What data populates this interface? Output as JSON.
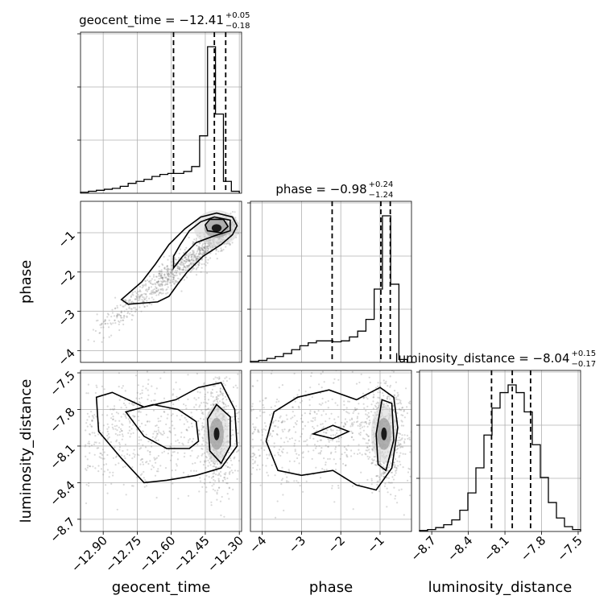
{
  "chart_data": {
    "type": "corner",
    "parameters": [
      "geocent_time",
      "phase",
      "luminosity_distance"
    ],
    "axis_labels": {
      "geocent_time": "geocent_time",
      "phase": "phase",
      "luminosity_distance": "luminosity_distance"
    },
    "ranges": {
      "geocent_time": [
        -13.0,
        -12.29
      ],
      "phase": [
        -4.3,
        -0.2
      ],
      "luminosity_distance": [
        -8.8,
        -7.48
      ]
    },
    "ticks": {
      "geocent_time": [
        -12.9,
        -12.75,
        -12.6,
        -12.45,
        -12.3
      ],
      "phase": [
        -4,
        -3,
        -2,
        -1
      ],
      "luminosity_distance": [
        -8.7,
        -8.4,
        -8.1,
        -7.8,
        -7.5
      ]
    },
    "tick_labels": {
      "geocent_time": [
        "−12.90",
        "−12.75",
        "−12.60",
        "−12.45",
        "−12.30"
      ],
      "phase": [
        "−4",
        "−3",
        "−2",
        "−1"
      ],
      "luminosity_distance": [
        "−8.7",
        "−8.4",
        "−8.1",
        "−7.8",
        "−7.5"
      ]
    },
    "titles": {
      "geocent_time": {
        "text": "geocent_time = −12.41",
        "plus": "+0.05",
        "minus": "−0.18"
      },
      "phase": {
        "text": "phase = −0.98",
        "plus": "+0.24",
        "minus": "−1.24"
      },
      "luminosity_distance": {
        "text": "luminosity_distance = −8.04",
        "plus": "+0.15",
        "minus": "−0.17"
      }
    },
    "quantiles": {
      "geocent_time": [
        -12.59,
        -12.41,
        -12.36
      ],
      "phase": [
        -2.22,
        -0.98,
        -0.74
      ],
      "luminosity_distance": [
        -8.21,
        -8.04,
        -7.89
      ]
    },
    "histograms": {
      "geocent_time": {
        "edges": [
          -13.0,
          -12.965,
          -12.93,
          -12.895,
          -12.86,
          -12.825,
          -12.79,
          -12.755,
          -12.72,
          -12.685,
          -12.65,
          -12.615,
          -12.58,
          -12.545,
          -12.51,
          -12.475,
          -12.44,
          -12.405,
          -12.37,
          -12.335,
          -12.3
        ],
        "counts": [
          1,
          2,
          3,
          4,
          5,
          7,
          10,
          12,
          14,
          17,
          19,
          20,
          20,
          22,
          27,
          58,
          148,
          80,
          12,
          2
        ]
      },
      "phase": {
        "edges": [
          -4.3,
          -4.09,
          -3.88,
          -3.67,
          -3.46,
          -3.25,
          -3.04,
          -2.83,
          -2.62,
          -2.41,
          -2.2,
          -1.99,
          -1.78,
          -1.57,
          -1.36,
          -1.15,
          -0.94,
          -0.73,
          -0.52,
          -0.31,
          -0.1
        ],
        "counts": [
          1,
          2,
          4,
          6,
          9,
          13,
          17,
          20,
          22,
          22,
          21,
          22,
          26,
          32,
          44,
          75,
          150,
          80,
          3,
          0
        ]
      },
      "luminosity_distance": {
        "edges": [
          -8.8,
          -8.734,
          -8.668,
          -8.602,
          -8.536,
          -8.47,
          -8.404,
          -8.338,
          -8.272,
          -8.206,
          -8.14,
          -8.074,
          -8.008,
          -7.942,
          -7.876,
          -7.81,
          -7.744,
          -7.678,
          -7.612,
          -7.546,
          -7.48
        ],
        "counts": [
          1,
          2,
          4,
          7,
          12,
          22,
          40,
          66,
          100,
          128,
          144,
          152,
          144,
          124,
          90,
          56,
          30,
          14,
          5,
          2
        ]
      }
    },
    "scatter_centers": {
      "phase_vs_geocent_time": [
        -12.4,
        -0.88
      ],
      "luminosity_distance_vs_geocent_time": [
        -12.4,
        -8.0
      ],
      "luminosity_distance_vs_phase": [
        -0.9,
        -8.0
      ]
    },
    "contours": {
      "phase_vs_geocent_time": [
        [
          [
            -12.82,
            -2.7
          ],
          [
            -12.79,
            -2.82
          ],
          [
            -12.66,
            -2.76
          ],
          [
            -12.61,
            -2.62
          ],
          [
            -12.57,
            -2.3
          ],
          [
            -12.53,
            -2.0
          ],
          [
            -12.46,
            -1.6
          ],
          [
            -12.38,
            -1.3
          ],
          [
            -12.33,
            -1.05
          ],
          [
            -12.31,
            -0.82
          ],
          [
            -12.33,
            -0.6
          ],
          [
            -12.4,
            -0.5
          ],
          [
            -12.47,
            -0.6
          ],
          [
            -12.54,
            -0.9
          ],
          [
            -12.61,
            -1.3
          ],
          [
            -12.67,
            -1.8
          ],
          [
            -12.73,
            -2.25
          ]
        ],
        [
          [
            -12.59,
            -1.9
          ],
          [
            -12.55,
            -1.6
          ],
          [
            -12.49,
            -1.25
          ],
          [
            -12.41,
            -1.08
          ],
          [
            -12.34,
            -0.95
          ],
          [
            -12.34,
            -0.68
          ],
          [
            -12.41,
            -0.6
          ],
          [
            -12.47,
            -0.72
          ],
          [
            -12.52,
            -0.95
          ],
          [
            -12.56,
            -1.3
          ],
          [
            -12.59,
            -1.6
          ]
        ],
        [
          [
            -12.44,
            -0.95
          ],
          [
            -12.38,
            -1.0
          ],
          [
            -12.35,
            -0.84
          ],
          [
            -12.37,
            -0.66
          ],
          [
            -12.43,
            -0.66
          ],
          [
            -12.45,
            -0.8
          ]
        ]
      ],
      "luminosity_distance_vs_geocent_time": [
        [
          [
            -12.93,
            -7.7
          ],
          [
            -12.92,
            -7.98
          ],
          [
            -12.82,
            -8.2
          ],
          [
            -12.72,
            -8.4
          ],
          [
            -12.62,
            -8.38
          ],
          [
            -12.49,
            -8.34
          ],
          [
            -12.38,
            -8.28
          ],
          [
            -12.31,
            -8.1
          ],
          [
            -12.32,
            -7.8
          ],
          [
            -12.38,
            -7.58
          ],
          [
            -12.48,
            -7.62
          ],
          [
            -12.58,
            -7.72
          ],
          [
            -12.72,
            -7.78
          ],
          [
            -12.86,
            -7.66
          ]
        ],
        [
          [
            -12.8,
            -7.82
          ],
          [
            -12.72,
            -8.02
          ],
          [
            -12.62,
            -8.12
          ],
          [
            -12.52,
            -8.12
          ],
          [
            -12.48,
            -8.06
          ],
          [
            -12.49,
            -7.9
          ],
          [
            -12.57,
            -7.8
          ],
          [
            -12.68,
            -7.76
          ]
        ],
        [
          [
            -12.44,
            -7.88
          ],
          [
            -12.43,
            -8.14
          ],
          [
            -12.38,
            -8.24
          ],
          [
            -12.34,
            -8.1
          ],
          [
            -12.34,
            -7.86
          ],
          [
            -12.4,
            -7.76
          ]
        ]
      ],
      "luminosity_distance_vs_phase": [
        [
          [
            -3.9,
            -8.06
          ],
          [
            -3.6,
            -8.3
          ],
          [
            -3.0,
            -8.34
          ],
          [
            -2.2,
            -8.3
          ],
          [
            -1.6,
            -8.42
          ],
          [
            -1.1,
            -8.46
          ],
          [
            -0.7,
            -8.28
          ],
          [
            -0.55,
            -7.95
          ],
          [
            -0.65,
            -7.7
          ],
          [
            -1.0,
            -7.62
          ],
          [
            -1.6,
            -7.72
          ],
          [
            -2.3,
            -7.64
          ],
          [
            -3.1,
            -7.7
          ],
          [
            -3.7,
            -7.82
          ]
        ],
        [
          [
            -2.7,
            -8.0
          ],
          [
            -2.2,
            -8.04
          ],
          [
            -1.8,
            -7.98
          ],
          [
            -2.2,
            -7.93
          ]
        ],
        [
          [
            -1.1,
            -8.0
          ],
          [
            -1.05,
            -8.25
          ],
          [
            -0.85,
            -8.3
          ],
          [
            -0.65,
            -8.05
          ],
          [
            -0.7,
            -7.75
          ],
          [
            -0.95,
            -7.72
          ]
        ]
      ]
    }
  }
}
